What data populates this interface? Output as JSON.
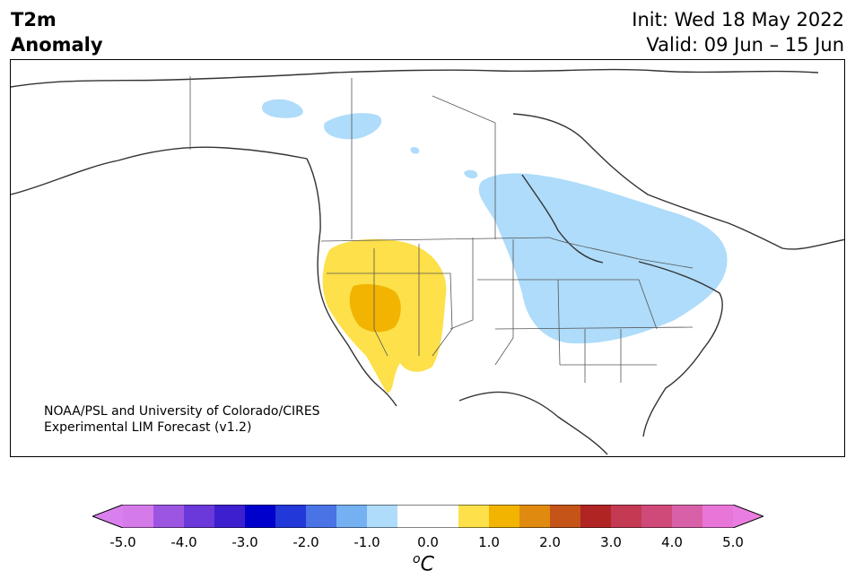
{
  "title": {
    "line1": "T2m",
    "line2": "Anomaly",
    "init": "Init: Wed 18 May 2022",
    "valid": "Valid: 09 Jun – 15 Jun"
  },
  "credit": {
    "line1": "NOAA/PSL and University of Colorado/CIRES",
    "line2": "Experimental LIM Forecast (v1.2)"
  },
  "colorbar": {
    "ticks": [
      "-5.0",
      "-4.0",
      "-3.0",
      "-2.0",
      "-1.0",
      "0.0",
      "1.0",
      "2.0",
      "3.0",
      "4.0",
      "5.0"
    ],
    "unit_sup": "o",
    "unit": "C",
    "colors": [
      "#d57ae9",
      "#9c55e0",
      "#6b38d9",
      "#3d1fcf",
      "#0000cc",
      "#2238d8",
      "#4a73e6",
      "#74b0f2",
      "#aedcfa",
      "#ffffff",
      "#ffffff",
      "#fde04a",
      "#f2b400",
      "#e08a10",
      "#c45418",
      "#b02424",
      "#c43a52",
      "#cf4a78",
      "#d860a8",
      "#e875d8"
    ],
    "under_color": "#da80ee",
    "over_color": "#ea7ee0"
  },
  "map": {
    "anomaly_colors": {
      "cool": "#aedcfa",
      "warm": "#fde04a",
      "warmer": "#f2b400"
    }
  }
}
